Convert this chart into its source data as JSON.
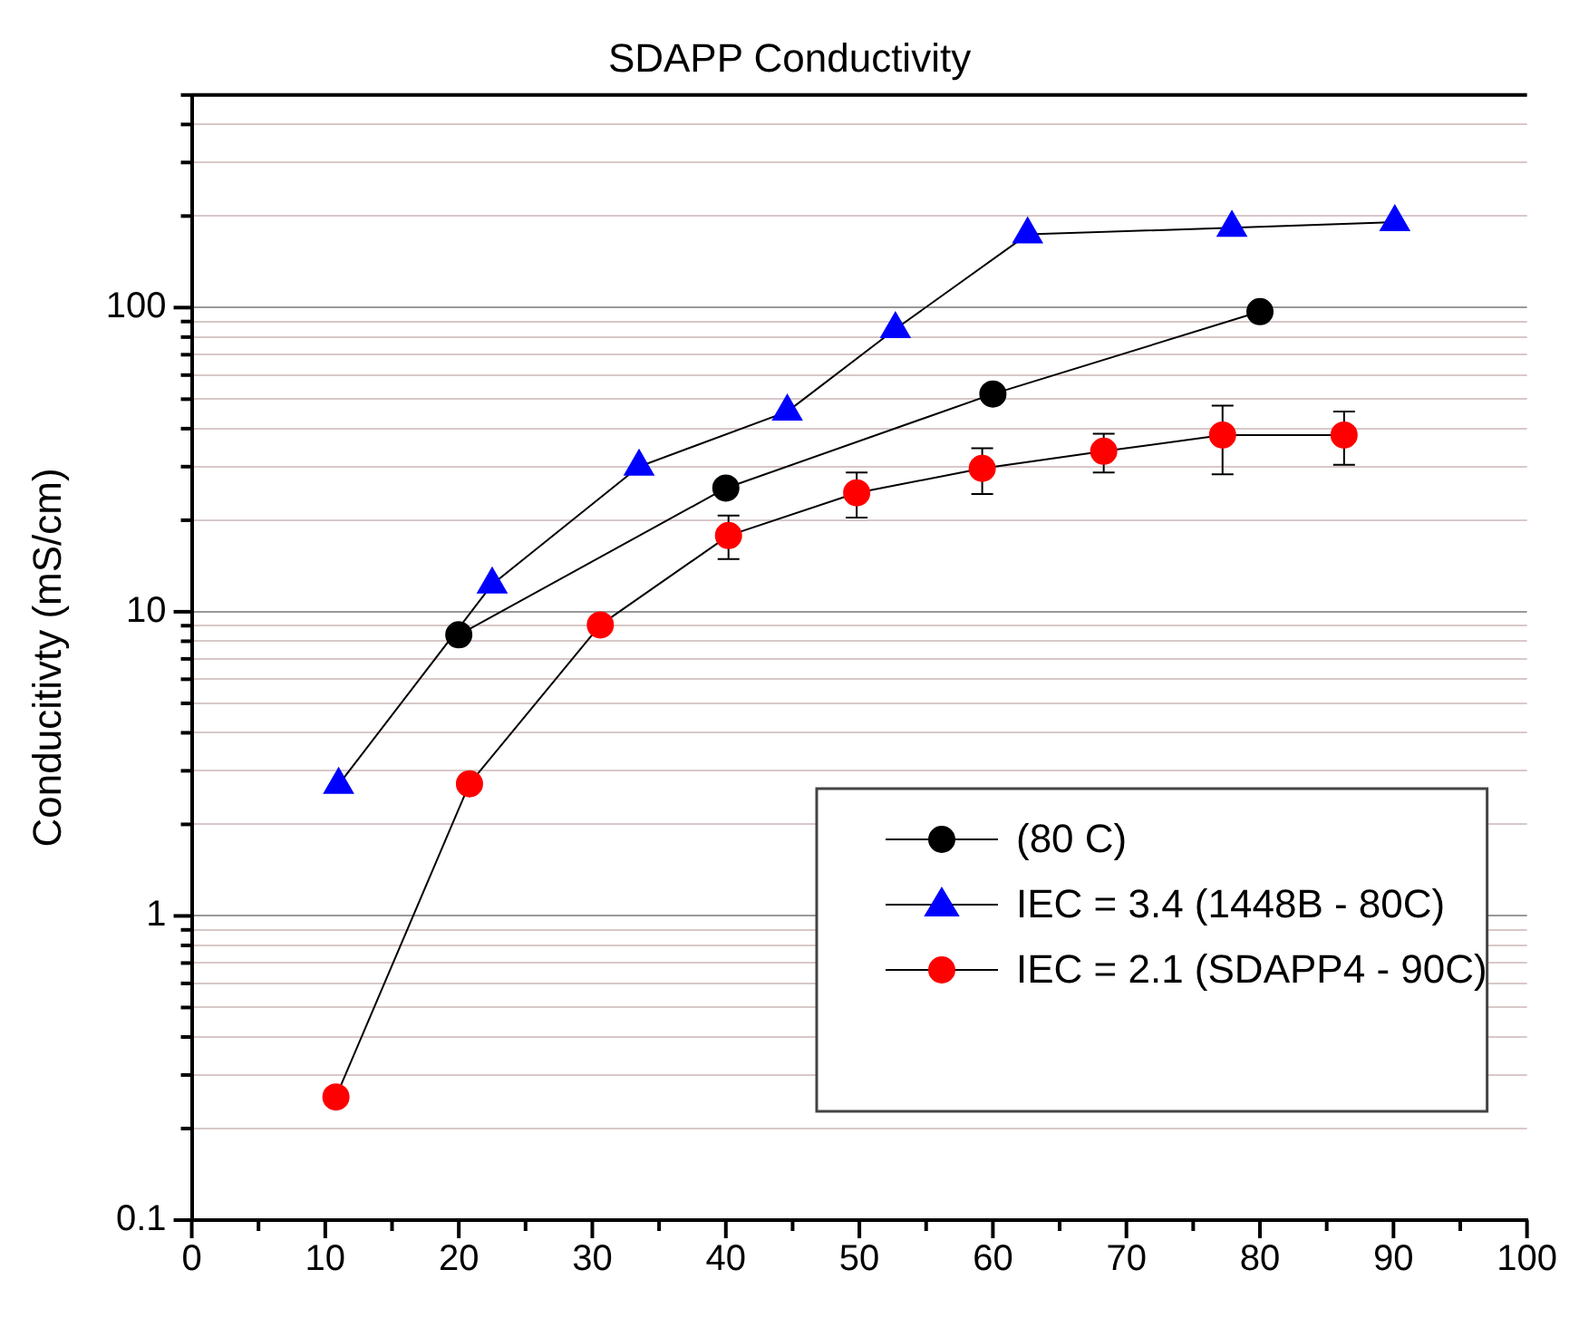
{
  "chart_data": {
    "type": "line",
    "title": "SDAPP Conductivity",
    "ylabel": "Conducitivty (mS/cm)",
    "log": "y",
    "grid": "y",
    "legend": "bottom right",
    "line_style": "solid",
    "xlim": [
      0,
      100
    ],
    "xticks": [
      0,
      {
        "value": 5,
        "label": null
      },
      10,
      {
        "value": 15,
        "label": null
      },
      20,
      {
        "value": 25,
        "label": null
      },
      30,
      {
        "value": 35,
        "label": null
      },
      40,
      {
        "value": 45,
        "label": null
      },
      50,
      {
        "value": 55,
        "label": null
      },
      60,
      {
        "value": 65,
        "label": null
      },
      70,
      {
        "value": 75,
        "label": null
      },
      80,
      {
        "value": 85,
        "label": null
      },
      90,
      {
        "value": 95,
        "label": null
      },
      100
    ],
    "ylim": [
      0.1,
      500
    ],
    "yticks": [
      0.1,
      {
        "value": 0.2,
        "label": null
      },
      {
        "value": 0.3,
        "label": null
      },
      {
        "value": 0.4,
        "label": null
      },
      {
        "value": 0.5,
        "label": null
      },
      {
        "value": 0.6,
        "label": null
      },
      {
        "value": 0.7,
        "label": null
      },
      {
        "value": 0.8,
        "label": null
      },
      {
        "value": 0.9,
        "label": null
      },
      1,
      {
        "value": 2,
        "label": null
      },
      {
        "value": 3,
        "label": null
      },
      {
        "value": 4,
        "label": null
      },
      {
        "value": 5,
        "label": null
      },
      {
        "value": 6,
        "label": null
      },
      {
        "value": 7,
        "label": null
      },
      {
        "value": 8,
        "label": null
      },
      {
        "value": 9,
        "label": null
      },
      10,
      {
        "value": 20,
        "label": null
      },
      {
        "value": 30,
        "label": null
      },
      {
        "value": 40,
        "label": null
      },
      {
        "value": 50,
        "label": null
      },
      {
        "value": 60,
        "label": null
      },
      {
        "value": 70,
        "label": null
      },
      {
        "value": 80,
        "label": null
      },
      {
        "value": 90,
        "label": null
      },
      100,
      {
        "value": 200,
        "label": null
      },
      {
        "value": 300,
        "label": null
      },
      {
        "value": 400,
        "label": null
      },
      {
        "value": 500,
        "label": null
      }
    ],
    "series": [
      {
        "name": "(80 C)",
        "color": "#000000",
        "marker": "circle",
        "x": [
          20,
          40,
          60,
          80
        ],
        "values": [
          8.4,
          25.5,
          52,
          97
        ]
      },
      {
        "name": "IEC = 3.4 (1448B - 80C)",
        "color": "#0000ff",
        "marker": "triangle",
        "x": [
          11,
          22.5,
          33.5,
          44.6,
          52.7,
          62.6,
          77.9,
          90.1
        ],
        "values": [
          2.7,
          12.3,
          30,
          45.5,
          85,
          174,
          183,
          191
        ]
      },
      {
        "name": "IEC = 2.1 (SDAPP4 - 90C)",
        "color": "#ff0000",
        "marker": "circle",
        "x": [
          10.8,
          20.8,
          30.6,
          40.2,
          49.8,
          59.2,
          68.3,
          77.2,
          86.3
        ],
        "values": [
          0.254,
          2.72,
          9.05,
          17.8,
          24.6,
          29.6,
          33.7,
          38.1,
          38.1
        ],
        "errors": [
          null,
          null,
          null,
          [
            14.9,
            20.7
          ],
          [
            20.4,
            28.7
          ],
          [
            24.4,
            34.5
          ],
          [
            28.7,
            38.5
          ],
          [
            28.3,
            47.6
          ],
          [
            30.4,
            45.5
          ]
        ]
      }
    ]
  }
}
